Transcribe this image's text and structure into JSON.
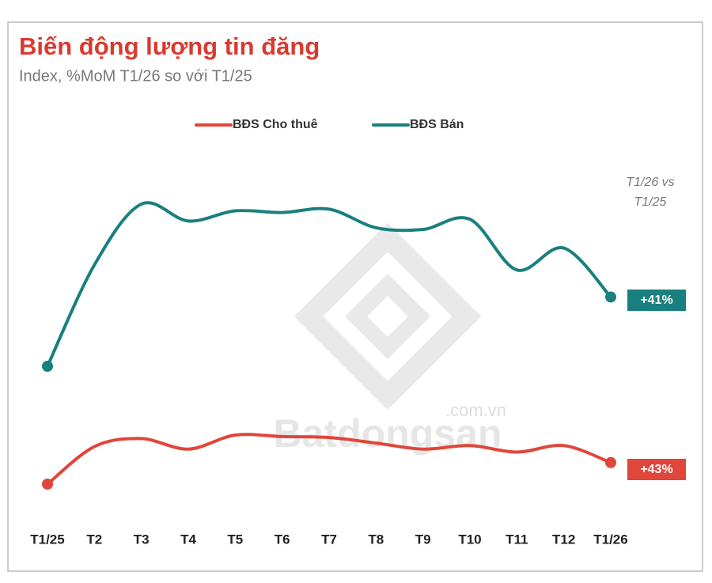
{
  "chart_data": {
    "type": "line",
    "title": "Biến động lượng tin đăng",
    "subtitle": "Index, %MoM T1/26 so với T1/25",
    "annotation": [
      "T1/26 vs",
      "T1/25"
    ],
    "watermark": [
      ".com.vn",
      "Batdongsan"
    ],
    "categories": [
      "T1/25",
      "T2",
      "T3",
      "T4",
      "T5",
      "T6",
      "T7",
      "T8",
      "T9",
      "T10",
      "T11",
      "T12",
      "T1/26"
    ],
    "series": [
      {
        "name": "BĐS Cho thuê",
        "color": "#e0463a",
        "values": [
          100,
          175,
          191,
          170,
          198,
          195,
          193,
          182,
          170,
          177,
          164,
          177,
          143
        ],
        "value_labels": [
          null,
          null,
          null,
          null,
          null,
          null,
          null,
          null,
          null,
          null,
          null,
          null,
          "+43%"
        ]
      },
      {
        "name": "BĐS Bán",
        "color": "#1a7f7f",
        "values": [
          100,
          160,
          196,
          186,
          192,
          191,
          193,
          182,
          181,
          187,
          157,
          170,
          141
        ],
        "value_labels": [
          null,
          null,
          null,
          null,
          null,
          null,
          null,
          null,
          null,
          null,
          null,
          null,
          "+41%"
        ]
      }
    ]
  }
}
